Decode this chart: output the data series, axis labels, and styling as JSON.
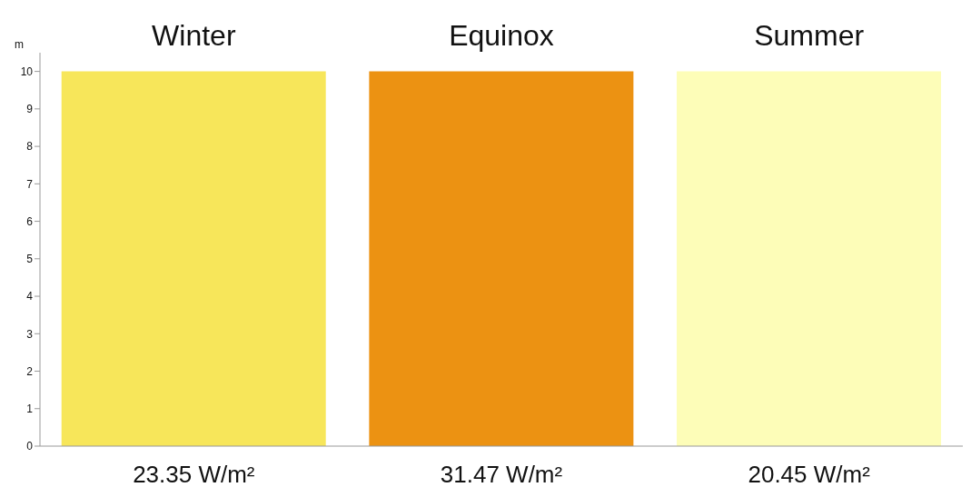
{
  "chart_data": {
    "type": "bar",
    "categories": [
      "Winter",
      "Equinox",
      "Summer"
    ],
    "values": [
      10,
      10,
      10
    ],
    "colors": [
      "#f7e65a",
      "#ec9212",
      "#fdfdb8"
    ],
    "ylabel": "m",
    "ylim": [
      0,
      10.5
    ],
    "yticks": [
      0,
      1,
      2,
      3,
      4,
      5,
      6,
      7,
      8,
      9,
      10
    ],
    "grid": false,
    "legend": false,
    "annotations": [
      "23.35 W/m²",
      "31.47 W/m²",
      "20.45 W/m²"
    ]
  }
}
